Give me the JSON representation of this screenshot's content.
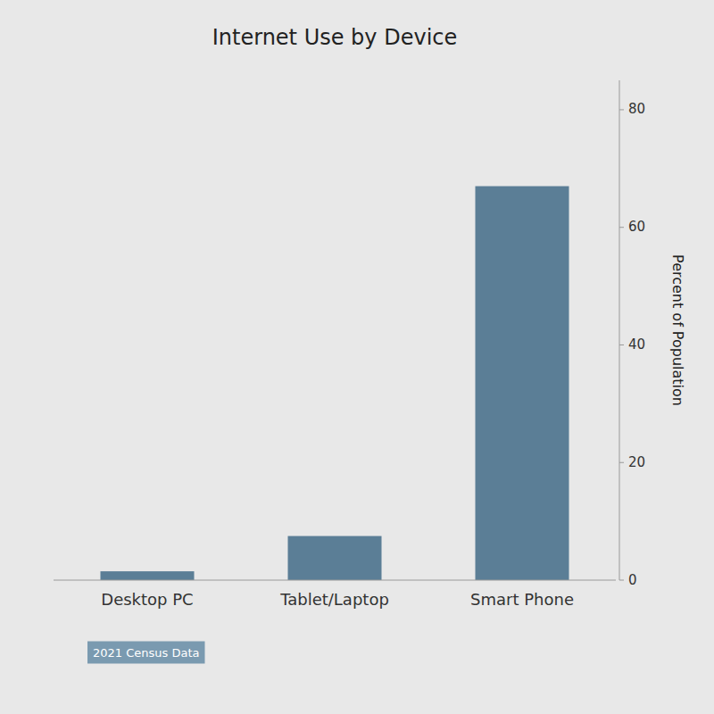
{
  "chart_data": {
    "type": "bar",
    "title": "Internet Use by Device",
    "categories": [
      "Desktop PC",
      "Tablet/Laptop",
      "Smart Phone"
    ],
    "values": [
      1.5,
      7.5,
      67.0
    ],
    "color": "#5b7e96",
    "ylabel": "Percent of Population",
    "ylim": [
      0,
      85
    ],
    "yticks": [
      0,
      20,
      40,
      60,
      80
    ],
    "grid": false,
    "annotation": "2021 Census Data"
  }
}
